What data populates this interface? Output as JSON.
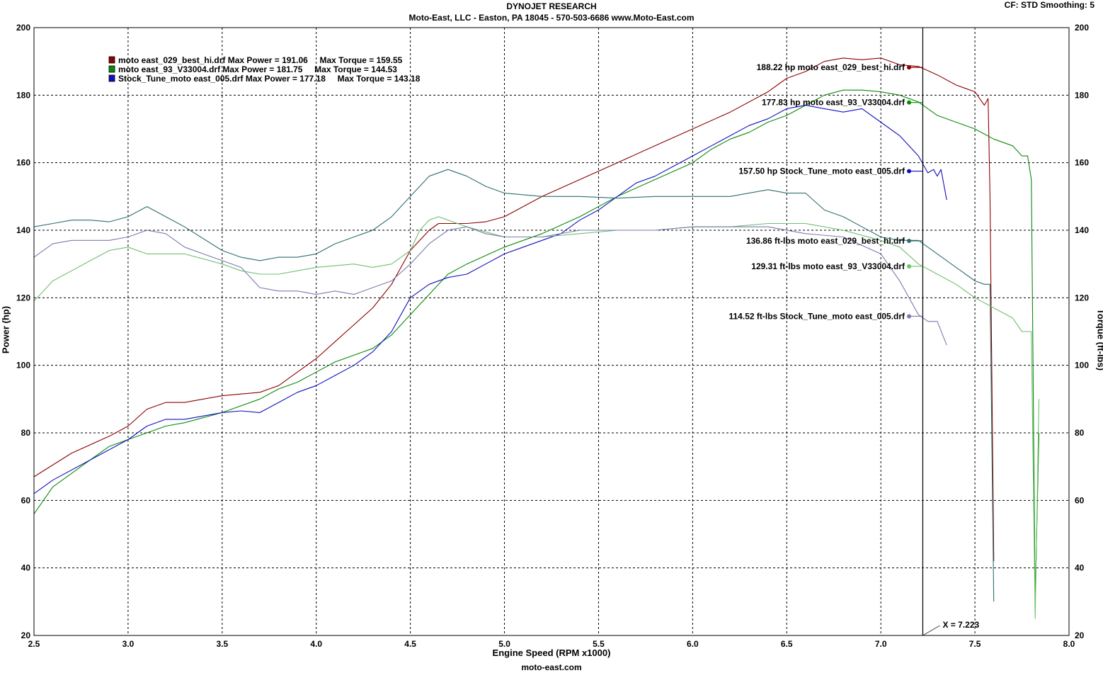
{
  "header": {
    "title": "DYNOJET RESEARCH",
    "subtitle": "Moto-East, LLC - Easton, PA 18045 - 570-503-6686 www.Moto-East.com",
    "settings": "CF: STD  Smoothing: 5",
    "footer": "moto-east.com"
  },
  "chart_data": {
    "type": "line",
    "xlabel": "Engine Speed (RPM x1000)",
    "ylabel": "Power (hp)",
    "y2label": "Torque (ft-lbs)",
    "xlim": [
      2.5,
      8.0
    ],
    "ylim": [
      20,
      200
    ],
    "y2lim": [
      20,
      200
    ],
    "x_ticks": [
      "2.5",
      "3.0",
      "3.5",
      "4.0",
      "4.5",
      "5.0",
      "5.5",
      "6.0",
      "6.5",
      "7.0",
      "7.5",
      "8.0"
    ],
    "y_ticks": [
      "20",
      "40",
      "60",
      "80",
      "100",
      "120",
      "140",
      "160",
      "180",
      "200"
    ],
    "grid": true,
    "cursor": {
      "x": 7.223,
      "label": "X = 7.223"
    },
    "legend_position": "top-left",
    "legend": [
      {
        "file": "moto east_029_best_hi.drf",
        "text": "moto east_029_best_hi.drf Max Power = 191.06     Max Torque = 159.55",
        "color": "#8b0000"
      },
      {
        "file": "moto east_93_V33004.drf",
        "text": "moto east_93_V33004.drf Max Power = 181.75     Max Torque = 144.53",
        "color": "#0a8a0a"
      },
      {
        "file": "Stock_Tune_moto east_005.drf",
        "text": "Stock_Tune_moto east_005.drf Max Power = 177.18     Max Torque = 143.18",
        "color": "#1010c0"
      }
    ],
    "cursor_readouts": [
      {
        "text": "188.22 hp moto east_029_best_hi.drf",
        "value": 188.22,
        "color": "#8b0000"
      },
      {
        "text": "177.83 hp moto east_93_V33004.drf",
        "value": 177.83,
        "color": "#0a8a0a"
      },
      {
        "text": "157.50 hp Stock_Tune_moto east_005.drf",
        "value": 157.5,
        "color": "#1010c0"
      },
      {
        "text": "136.86 ft-lbs moto east_029_best_hi.drf",
        "value": 136.86,
        "color": "#2e6e6e"
      },
      {
        "text": "129.31 ft-lbs moto east_93_V33004.drf",
        "value": 129.31,
        "color": "#6fbf6f"
      },
      {
        "text": "114.52 ft-lbs Stock_Tune_moto east_005.drf",
        "value": 114.52,
        "color": "#7a7ab0"
      }
    ],
    "series": [
      {
        "name": "moto east_029_best_hi.drf",
        "kind": "power",
        "color": "#8b0000",
        "x": [
          2.5,
          2.7,
          2.9,
          3.0,
          3.1,
          3.2,
          3.3,
          3.5,
          3.6,
          3.7,
          3.8,
          3.9,
          4.0,
          4.1,
          4.2,
          4.3,
          4.4,
          4.5,
          4.55,
          4.6,
          4.65,
          4.7,
          4.8,
          4.9,
          5.0,
          5.2,
          5.4,
          5.6,
          5.8,
          6.0,
          6.2,
          6.4,
          6.5,
          6.6,
          6.7,
          6.8,
          6.9,
          7.0,
          7.1,
          7.2,
          7.3,
          7.4,
          7.45,
          7.5,
          7.55,
          7.57,
          7.58,
          7.6
        ],
        "y": [
          67,
          74,
          79,
          82,
          87,
          89,
          89,
          91,
          91.5,
          92,
          94,
          98,
          102,
          107,
          112,
          117,
          124,
          134,
          137,
          140,
          142,
          142,
          142,
          142.5,
          144,
          150,
          155,
          160,
          165,
          170,
          175,
          181,
          185,
          187,
          190,
          191,
          190.5,
          191,
          189,
          188.5,
          186,
          183,
          182,
          181,
          177,
          179,
          150,
          42
        ]
      },
      {
        "name": "moto east_93_V33004.drf",
        "kind": "power",
        "color": "#0a8a0a",
        "x": [
          2.5,
          2.6,
          2.8,
          2.9,
          3.0,
          3.1,
          3.2,
          3.3,
          3.5,
          3.7,
          3.8,
          3.9,
          4.0,
          4.1,
          4.2,
          4.3,
          4.4,
          4.5,
          4.6,
          4.7,
          4.8,
          5.0,
          5.2,
          5.4,
          5.6,
          5.8,
          6.0,
          6.1,
          6.2,
          6.3,
          6.4,
          6.5,
          6.6,
          6.7,
          6.8,
          6.9,
          7.0,
          7.1,
          7.2,
          7.3,
          7.4,
          7.5,
          7.6,
          7.7,
          7.75,
          7.78,
          7.8,
          7.82,
          7.84
        ],
        "y": [
          56,
          64,
          72,
          76,
          78,
          80,
          82,
          83,
          86,
          90,
          93,
          95,
          98,
          101,
          103,
          105,
          109,
          115,
          121,
          127,
          130,
          135,
          139,
          144,
          150,
          155,
          160,
          164,
          167,
          169,
          172,
          174,
          177,
          180,
          181.5,
          181.5,
          181,
          180,
          178,
          174,
          172,
          170,
          167,
          165,
          162,
          162,
          155,
          30,
          80
        ]
      },
      {
        "name": "Stock_Tune_moto east_005.drf",
        "kind": "power",
        "color": "#1010c0",
        "x": [
          2.5,
          2.6,
          2.8,
          3.0,
          3.1,
          3.2,
          3.3,
          3.4,
          3.5,
          3.6,
          3.7,
          3.8,
          3.9,
          4.0,
          4.1,
          4.2,
          4.3,
          4.4,
          4.5,
          4.6,
          4.7,
          4.8,
          4.9,
          5.0,
          5.1,
          5.2,
          5.3,
          5.4,
          5.5,
          5.6,
          5.7,
          5.8,
          5.9,
          6.0,
          6.1,
          6.2,
          6.3,
          6.4,
          6.5,
          6.6,
          6.7,
          6.8,
          6.9,
          7.0,
          7.1,
          7.2,
          7.25,
          7.28,
          7.3,
          7.32,
          7.35
        ],
        "y": [
          62,
          66,
          72,
          78,
          82,
          84,
          84,
          85,
          86,
          86.5,
          86,
          89,
          92,
          94,
          97,
          100,
          104,
          110,
          120,
          124,
          126,
          127,
          130,
          133,
          135,
          137,
          139,
          143,
          146,
          150,
          154,
          156,
          159,
          162,
          165,
          168,
          171,
          173,
          176,
          177,
          176,
          175,
          176,
          172,
          168,
          162,
          157,
          158,
          156,
          158,
          149
        ]
      },
      {
        "name": "moto east_029_best_hi.drf",
        "kind": "torque",
        "color": "#2e6e6e",
        "x": [
          2.5,
          2.6,
          2.7,
          2.8,
          2.9,
          3.0,
          3.1,
          3.2,
          3.3,
          3.5,
          3.6,
          3.7,
          3.8,
          3.9,
          4.0,
          4.1,
          4.2,
          4.3,
          4.4,
          4.5,
          4.6,
          4.7,
          4.8,
          4.9,
          5.0,
          5.2,
          5.4,
          5.6,
          5.8,
          6.0,
          6.2,
          6.4,
          6.5,
          6.6,
          6.7,
          6.8,
          6.9,
          7.0,
          7.1,
          7.2,
          7.3,
          7.4,
          7.5,
          7.55,
          7.58,
          7.6
        ],
        "y": [
          141,
          142,
          143,
          143,
          142.5,
          144,
          147,
          144,
          141,
          134,
          132,
          131,
          132,
          132,
          133,
          136,
          138,
          140,
          144,
          150,
          156,
          158,
          156,
          153,
          151,
          150,
          150,
          149.5,
          150,
          150,
          150,
          152,
          151,
          151,
          146,
          144,
          141,
          138,
          137,
          137,
          133,
          129,
          125,
          124,
          124,
          30
        ]
      },
      {
        "name": "moto east_93_V33004.drf",
        "kind": "torque",
        "color": "#6fbf6f",
        "x": [
          2.5,
          2.6,
          2.7,
          2.8,
          2.9,
          3.0,
          3.1,
          3.2,
          3.3,
          3.5,
          3.6,
          3.7,
          3.8,
          3.9,
          4.0,
          4.1,
          4.2,
          4.3,
          4.4,
          4.5,
          4.55,
          4.6,
          4.65,
          4.7,
          4.8,
          5.0,
          5.2,
          5.4,
          5.6,
          5.8,
          6.0,
          6.2,
          6.4,
          6.6,
          6.8,
          7.0,
          7.1,
          7.2,
          7.3,
          7.4,
          7.5,
          7.6,
          7.7,
          7.75,
          7.8,
          7.82,
          7.84
        ],
        "y": [
          119,
          125,
          128,
          131,
          134,
          135,
          133,
          133,
          133,
          130,
          128,
          127,
          127,
          128,
          129,
          129.5,
          130,
          129,
          130,
          134,
          140,
          143,
          144,
          143,
          141,
          138,
          138,
          139,
          140,
          140,
          141,
          141,
          142,
          142,
          140,
          137,
          135,
          130,
          127,
          124,
          120,
          117,
          114,
          110,
          110,
          25,
          90
        ]
      },
      {
        "name": "Stock_Tune_moto east_005.drf",
        "kind": "torque",
        "color": "#7a7ab0",
        "x": [
          2.5,
          2.6,
          2.7,
          2.8,
          2.9,
          3.0,
          3.1,
          3.2,
          3.3,
          3.4,
          3.5,
          3.6,
          3.7,
          3.8,
          3.9,
          4.0,
          4.1,
          4.2,
          4.3,
          4.4,
          4.5,
          4.6,
          4.7,
          4.8,
          4.9,
          5.0,
          5.2,
          5.4,
          5.6,
          5.8,
          6.0,
          6.2,
          6.4,
          6.6,
          6.8,
          7.0,
          7.1,
          7.2,
          7.25,
          7.3,
          7.35
        ],
        "y": [
          132,
          136,
          137,
          137,
          137,
          138,
          140,
          139,
          135,
          133,
          131,
          129,
          123,
          122,
          122,
          121,
          122,
          121,
          123,
          125,
          130,
          136,
          140,
          141,
          139,
          138,
          138,
          140,
          140,
          140,
          141,
          141,
          141,
          139,
          138,
          133,
          125,
          115,
          113,
          113,
          106
        ]
      }
    ]
  }
}
